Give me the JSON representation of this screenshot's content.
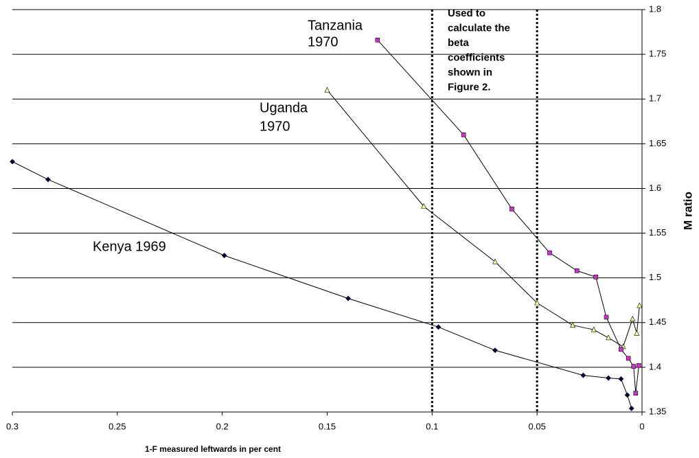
{
  "chart_data": {
    "type": "line",
    "x_label": "1-F measured leftwards in per cent",
    "y_label": "M ratio",
    "xlim": [
      0.3,
      0
    ],
    "xticks": [
      0.3,
      0.25,
      0.2,
      0.15,
      0.1,
      0.05,
      0
    ],
    "ylim": [
      1.35,
      1.8
    ],
    "yticks": [
      1.35,
      1.4,
      1.45,
      1.5,
      1.55,
      1.6,
      1.65,
      1.7,
      1.75,
      1.8
    ],
    "grid": true,
    "reference_lines": [
      0.1,
      0.05
    ],
    "series": [
      {
        "marker": "diamond",
        "color": "#000033",
        "x": [
          0.3,
          0.283,
          0.199,
          0.14,
          0.097,
          0.07,
          0.028,
          0.016,
          0.01,
          0.007,
          0.005
        ],
        "values": [
          1.63,
          1.61,
          1.525,
          1.477,
          1.445,
          1.419,
          1.391,
          1.388,
          1.387,
          1.369,
          1.354
        ]
      },
      {
        "marker": "triangle",
        "color": "#ffff99",
        "x": [
          0.15,
          0.104,
          0.07,
          0.05,
          0.033,
          0.023,
          0.016,
          0.009,
          0.0045,
          0.0025,
          0.0012
        ],
        "values": [
          1.71,
          1.58,
          1.518,
          1.472,
          1.447,
          1.442,
          1.433,
          1.423,
          1.454,
          1.438,
          1.469
        ]
      },
      {
        "marker": "square",
        "color": "#cc33cc",
        "x": [
          0.126,
          0.085,
          0.062,
          0.044,
          0.031,
          0.022,
          0.017,
          0.01,
          0.0065,
          0.004,
          0.003,
          0.0015
        ],
        "values": [
          1.766,
          1.66,
          1.577,
          1.528,
          1.508,
          1.501,
          1.456,
          1.42,
          1.41,
          1.401,
          1.371,
          1.402
        ]
      }
    ],
    "annotations": [
      {
        "lines": [
          "Tanzania",
          "1970"
        ]
      },
      {
        "lines": [
          "Uganda",
          "1970"
        ]
      },
      {
        "lines": [
          "Kenya 1969"
        ]
      },
      {
        "lines": [
          "Used to",
          "calculate the",
          "beta",
          "coefficients",
          "shown in",
          "Figure 2."
        ]
      }
    ]
  }
}
